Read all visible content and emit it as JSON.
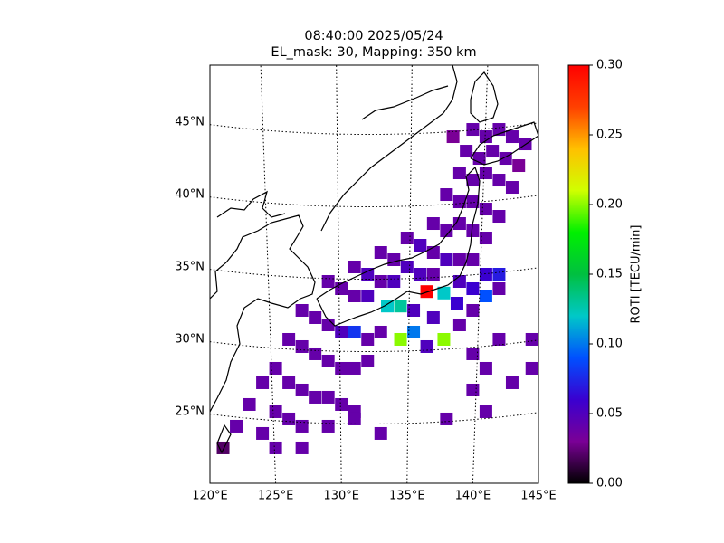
{
  "chart_data": {
    "type": "geo-heatmap",
    "title": "08:40:00 2025/05/24",
    "subtitle": "EL_mask: 30, Mapping: 350 km",
    "colorbar_label": "ROTI [TECU/min]",
    "colormap": [
      "#000000",
      "#7a0096",
      "#3a00d0",
      "#0050ff",
      "#00c8c8",
      "#00c040",
      "#00f000",
      "#d0ff00",
      "#ffc000",
      "#ff4000",
      "#ff0000"
    ],
    "xlim": [
      120,
      145
    ],
    "ylim": [
      20.06,
      48.94
    ],
    "clim": [
      0,
      0.3
    ],
    "xticks": [
      {
        "value": 120,
        "label": "120°E"
      },
      {
        "value": 125,
        "label": "125°E"
      },
      {
        "value": 130,
        "label": "130°E"
      },
      {
        "value": 135,
        "label": "135°E"
      },
      {
        "value": 140,
        "label": "140°E"
      },
      {
        "value": 145,
        "label": "145°E"
      }
    ],
    "yticks": [
      {
        "value": 25,
        "label": "25°N"
      },
      {
        "value": 30,
        "label": "30°N"
      },
      {
        "value": 35,
        "label": "35°N"
      },
      {
        "value": 40,
        "label": "40°N"
      },
      {
        "value": 45,
        "label": "45°N"
      }
    ],
    "cticks": [
      {
        "value": 0,
        "label": "0.00"
      },
      {
        "value": 0.05,
        "label": "0.05"
      },
      {
        "value": 0.1,
        "label": "0.10"
      },
      {
        "value": 0.15,
        "label": "0.15"
      },
      {
        "value": 0.2,
        "label": "0.20"
      },
      {
        "value": 0.25,
        "label": "0.25"
      },
      {
        "value": 0.3,
        "label": "0.30"
      }
    ],
    "x": [
      140,
      141,
      142,
      143,
      144,
      138.5,
      139.5,
      140.5,
      141.5,
      142.5,
      143.5,
      139,
      140,
      141,
      142,
      143,
      138,
      139,
      140,
      141,
      142,
      137,
      138,
      139,
      140,
      141,
      135,
      136,
      137,
      138,
      139,
      140,
      141,
      142,
      133,
      134,
      135,
      136,
      137,
      139,
      140,
      141,
      142,
      131,
      132,
      133,
      134,
      136.5,
      137.8,
      138.8,
      140,
      129,
      130,
      131,
      132,
      133.5,
      134.5,
      135.5,
      137,
      139,
      127,
      128,
      129,
      130,
      131,
      132,
      133,
      134.5,
      135.5,
      137.8,
      136.5,
      126,
      127,
      128,
      129,
      130,
      131,
      132,
      125,
      124,
      126,
      127,
      128,
      129,
      130,
      131,
      123,
      125,
      126,
      127,
      129,
      131,
      122,
      124,
      125,
      127,
      121,
      133,
      138,
      141,
      140,
      141,
      143,
      140,
      144.5,
      144.5,
      142
    ],
    "y": [
      44.5,
      44,
      44.5,
      44,
      43.5,
      44,
      43,
      42.5,
      43,
      42.5,
      42,
      41.5,
      41,
      41.5,
      41,
      40.5,
      40,
      39.5,
      39.5,
      39,
      38.5,
      38,
      37.5,
      38,
      37.5,
      37,
      37,
      36.5,
      36,
      35.5,
      35.5,
      35.5,
      34.5,
      34.5,
      36,
      35.5,
      35,
      34.5,
      34.5,
      34,
      33.5,
      33,
      33.5,
      35,
      34.5,
      34,
      34,
      33.3,
      33.2,
      32.5,
      32,
      34,
      33.5,
      33,
      33,
      32.3,
      32.3,
      32,
      31.5,
      31,
      32,
      31.5,
      31,
      30.5,
      30.5,
      30,
      30.5,
      30,
      30.5,
      30,
      29.5,
      30,
      29.5,
      29,
      28.5,
      28,
      28,
      28.5,
      28,
      27,
      27,
      26.5,
      26,
      26,
      25.5,
      25,
      25.5,
      25,
      24.5,
      24,
      24,
      24.5,
      24,
      23.5,
      22.5,
      22.5,
      22.5,
      23.5,
      24.5,
      25,
      26.5,
      28,
      27,
      29,
      28,
      30,
      30
    ],
    "values": [
      0.04,
      0.04,
      0.04,
      0.04,
      0.04,
      0.03,
      0.04,
      0.04,
      0.04,
      0.04,
      0.03,
      0.04,
      0.04,
      0.04,
      0.04,
      0.04,
      0.04,
      0.04,
      0.04,
      0.04,
      0.04,
      0.04,
      0.04,
      0.04,
      0.04,
      0.04,
      0.04,
      0.05,
      0.04,
      0.05,
      0.04,
      0.04,
      0.06,
      0.07,
      0.04,
      0.04,
      0.05,
      0.05,
      0.04,
      0.05,
      0.06,
      0.09,
      0.04,
      0.04,
      0.05,
      0.04,
      0.05,
      0.3,
      0.12,
      0.06,
      0.04,
      0.04,
      0.04,
      0.04,
      0.05,
      0.12,
      0.13,
      0.05,
      0.05,
      0.04,
      0.04,
      0.04,
      0.04,
      0.05,
      0.08,
      0.04,
      0.04,
      0.2,
      0.1,
      0.2,
      0.05,
      0.04,
      0.04,
      0.04,
      0.04,
      0.04,
      0.04,
      0.04,
      0.04,
      0.04,
      0.04,
      0.04,
      0.04,
      0.04,
      0.04,
      0.04,
      0.04,
      0.04,
      0.04,
      0.04,
      0.04,
      0.04,
      0.04,
      0.04,
      0.04,
      0.04,
      0.02,
      0.04,
      0.04,
      0.04,
      0.04,
      0.04,
      0.04,
      0.04,
      0.04,
      0.04,
      0.04
    ]
  }
}
